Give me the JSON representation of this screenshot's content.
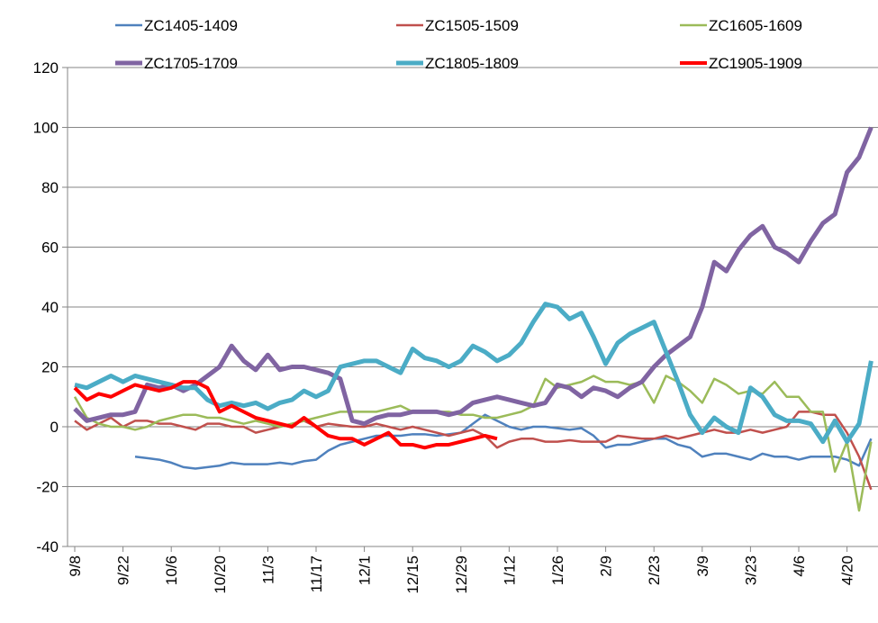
{
  "chart_data": {
    "type": "line",
    "categories": [
      "9/8",
      null,
      null,
      null,
      "9/22",
      null,
      null,
      null,
      "10/6",
      null,
      null,
      null,
      "10/20",
      null,
      null,
      null,
      "11/3",
      null,
      null,
      null,
      "11/17",
      null,
      null,
      null,
      "12/1",
      null,
      null,
      null,
      "12/15",
      null,
      null,
      null,
      "12/29",
      null,
      null,
      null,
      "1/12",
      null,
      null,
      null,
      "1/26",
      null,
      null,
      null,
      "2/9",
      null,
      null,
      null,
      "2/23",
      null,
      null,
      null,
      "3/9",
      null,
      null,
      null,
      "3/23",
      null,
      null,
      null,
      "4/6",
      null,
      null,
      null,
      "4/20",
      null,
      null
    ],
    "ylim": [
      -40,
      120
    ],
    "yticks": [
      -40,
      -20,
      0,
      20,
      40,
      60,
      80,
      100,
      120
    ],
    "grid": true,
    "series": [
      {
        "name": "ZC1405-1409",
        "color": "#4f81bd",
        "width": 2.5,
        "values": [
          null,
          null,
          null,
          null,
          null,
          -10,
          -10.5,
          -11,
          -12,
          -13.5,
          -14,
          -13.5,
          -13,
          -12,
          -12.5,
          -12.5,
          -12.5,
          -12,
          -12.5,
          -11.5,
          -11,
          -8,
          -6,
          -5,
          -4,
          -3,
          -3,
          -3,
          -2.5,
          -2.5,
          -3,
          -2.5,
          -2,
          1,
          4,
          2,
          0,
          -1,
          0,
          0,
          -0.5,
          -1,
          -0.5,
          -3,
          -7,
          -6,
          -6,
          -5,
          -4,
          -4,
          -6,
          -7,
          -10,
          -9,
          -9,
          -10,
          -11,
          -9,
          -10,
          -10,
          -11,
          -10,
          -10,
          -10,
          -11,
          -13,
          -4
        ]
      },
      {
        "name": "ZC1505-1509",
        "color": "#c0504d",
        "width": 2.5,
        "values": [
          2,
          -1,
          1,
          3,
          0,
          2,
          2,
          1,
          1,
          0,
          -1,
          1,
          1,
          0,
          0,
          -2,
          -1,
          0,
          1,
          2,
          0,
          1,
          0.5,
          0,
          0,
          1,
          0,
          -1,
          0,
          -1,
          -2,
          -3,
          -2,
          -1,
          -3,
          -7,
          -5,
          -4,
          -4,
          -5,
          -5,
          -4.5,
          -5,
          -5,
          -5,
          -3,
          -3.5,
          -4,
          -4,
          -3,
          -4,
          -3,
          -2,
          -1,
          -2,
          -2,
          -1,
          -2,
          -1,
          0,
          5,
          5,
          4,
          4,
          -2,
          -10,
          -21
        ]
      },
      {
        "name": "ZC1605-1609",
        "color": "#9bbb59",
        "width": 2.5,
        "values": [
          10,
          3,
          1,
          0,
          0,
          -1,
          0,
          2,
          3,
          4,
          4,
          3,
          3,
          2,
          1,
          2,
          1,
          0,
          1,
          2,
          3,
          4,
          5,
          5,
          5,
          5,
          6,
          7,
          5,
          5,
          5,
          5,
          4,
          4,
          3,
          3,
          4,
          5,
          7,
          16,
          13,
          14,
          15,
          17,
          15,
          15,
          14,
          15,
          8,
          17,
          15,
          12,
          8,
          16,
          14,
          11,
          12,
          11,
          15,
          10,
          10,
          5,
          5,
          -15,
          -5,
          -28,
          -5
        ]
      },
      {
        "name": "ZC1705-1709",
        "color": "#8064a2",
        "width": 5,
        "values": [
          6,
          2,
          3,
          4,
          4,
          5,
          14,
          13,
          14,
          12,
          14,
          17,
          20,
          27,
          22,
          19,
          24,
          19,
          20,
          20,
          19,
          18,
          16,
          2,
          1,
          3,
          4,
          4,
          5,
          5,
          5,
          4,
          5,
          8,
          9,
          10,
          9,
          8,
          7,
          8,
          14,
          13,
          10,
          13,
          12,
          10,
          13,
          15,
          20,
          24,
          27,
          30,
          40,
          55,
          52,
          59,
          64,
          67,
          60,
          58,
          55,
          62,
          68,
          71,
          85,
          90,
          100
        ]
      },
      {
        "name": "ZC1805-1809",
        "color": "#4bacc6",
        "width": 5,
        "values": [
          14,
          13,
          15,
          17,
          15,
          17,
          16,
          15,
          14,
          13,
          13,
          9,
          7,
          8,
          7,
          8,
          6,
          8,
          9,
          12,
          10,
          12,
          20,
          21,
          22,
          22,
          20,
          18,
          26,
          23,
          22,
          20,
          22,
          27,
          25,
          22,
          24,
          28,
          35,
          41,
          40,
          36,
          38,
          30,
          21,
          28,
          31,
          33,
          35,
          25,
          15,
          4,
          -2,
          3,
          0,
          -2,
          13,
          10,
          4,
          2,
          2,
          1,
          -5,
          2,
          -5,
          1,
          22
        ]
      },
      {
        "name": "ZC1905-1909",
        "color": "#ff0000",
        "width": 4,
        "values": [
          13,
          9,
          11,
          10,
          12,
          14,
          13,
          12,
          13,
          15,
          15,
          13,
          5,
          7,
          5,
          3,
          2,
          1,
          0,
          3,
          0,
          -3,
          -4,
          -4,
          -6,
          -4,
          -2,
          -6,
          -6,
          -7,
          -6,
          -6,
          -5,
          -4,
          -3,
          -4,
          null,
          null,
          null,
          null,
          null,
          null,
          null,
          null,
          null,
          null,
          null,
          null,
          null,
          null,
          null,
          null,
          null,
          null,
          null,
          null,
          null,
          null,
          null,
          null,
          null,
          null,
          null,
          null,
          null,
          null,
          null
        ]
      }
    ]
  }
}
